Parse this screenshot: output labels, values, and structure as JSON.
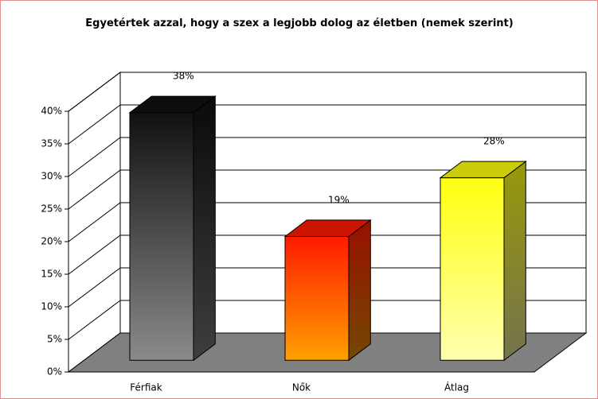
{
  "chart_data": {
    "type": "bar3d",
    "title": "Egyetértek azzal, hogy a szex a legjobb dolog az életben (nemek szerint)",
    "categories": [
      "Férfiak",
      "Nők",
      "Átlag"
    ],
    "values": [
      38,
      19,
      28
    ],
    "value_labels": [
      "38%",
      "19%",
      "28%"
    ],
    "gradients": [
      [
        "#111111",
        "#8a8a8a"
      ],
      [
        "#ff1a00",
        "#ffa000"
      ],
      [
        "#ffff10",
        "#ffffb0"
      ]
    ],
    "ylim": [
      0,
      40
    ],
    "yticks": [
      {
        "value": 0,
        "label": "0%"
      },
      {
        "value": 5,
        "label": "5%"
      },
      {
        "value": 10,
        "label": "10%"
      },
      {
        "value": 15,
        "label": "15%"
      },
      {
        "value": 20,
        "label": "20%"
      },
      {
        "value": 25,
        "label": "25%"
      },
      {
        "value": 30,
        "label": "30%"
      },
      {
        "value": 35,
        "label": "35%"
      },
      {
        "value": 40,
        "label": "40%"
      }
    ],
    "grid": true
  }
}
